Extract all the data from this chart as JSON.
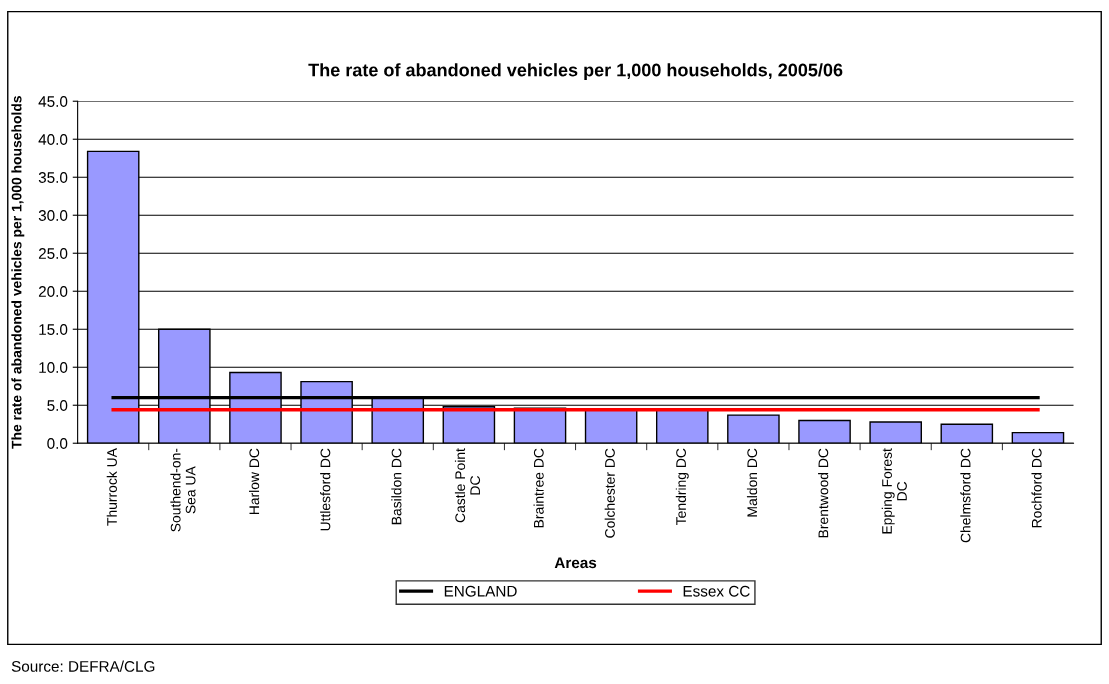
{
  "chart_data": {
    "type": "bar",
    "title": "The rate of abandoned vehicles per 1,000 households, 2005/06",
    "xlabel": "Areas",
    "ylabel": "The rate of abandoned vehicles per 1,000 households",
    "categories": [
      "Thurrock UA",
      "Southend-on-\nSea UA",
      "Harlow DC",
      "Uttlesford DC",
      "Basildon DC",
      "Castle Point\nDC",
      "Braintree DC",
      "Colchester DC",
      "Tendring DC",
      "Maldon DC",
      "Brentwood DC",
      "Epping Forest\nDC",
      "Chelmsford DC",
      "Rochford DC"
    ],
    "series": [
      {
        "color": "#9999ff",
        "values": [
          38.4,
          15.0,
          9.3,
          8.1,
          6.0,
          4.8,
          4.6,
          4.5,
          4.4,
          3.7,
          3.0,
          2.8,
          2.5,
          1.4
        ]
      },
      {
        "type": "line",
        "name": "ENGLAND",
        "color": "#000000",
        "values": [
          6.0,
          6.0,
          6.0,
          6.0,
          6.0,
          6.0,
          6.0,
          6.0,
          6.0,
          6.0,
          6.0,
          6.0,
          6.0,
          6.0
        ]
      },
      {
        "type": "line",
        "name": "Essex CC",
        "color": "#ff0000",
        "values": [
          4.4,
          4.4,
          4.4,
          4.4,
          4.4,
          4.4,
          4.4,
          4.4,
          4.4,
          4.4,
          4.4,
          4.4,
          4.4,
          4.4
        ]
      }
    ],
    "ylim": [
      0,
      45
    ],
    "yticks": [
      {
        "value": 0,
        "label": "0.0"
      },
      {
        "value": 5,
        "label": "5.0"
      },
      {
        "value": 10,
        "label": "10.0"
      },
      {
        "value": 15,
        "label": "15.0"
      },
      {
        "value": 20,
        "label": "20.0"
      },
      {
        "value": 25,
        "label": "25.0"
      },
      {
        "value": 30,
        "label": "30.0"
      },
      {
        "value": 35,
        "label": "35.0"
      },
      {
        "value": 40,
        "label": "40.0"
      },
      {
        "value": 45,
        "label": "45.0"
      }
    ],
    "grid": "y",
    "legend": "bottom",
    "marker": "none",
    "line_style": "solid",
    "annotations": [
      "Source: DEFRA/CLG"
    ]
  }
}
